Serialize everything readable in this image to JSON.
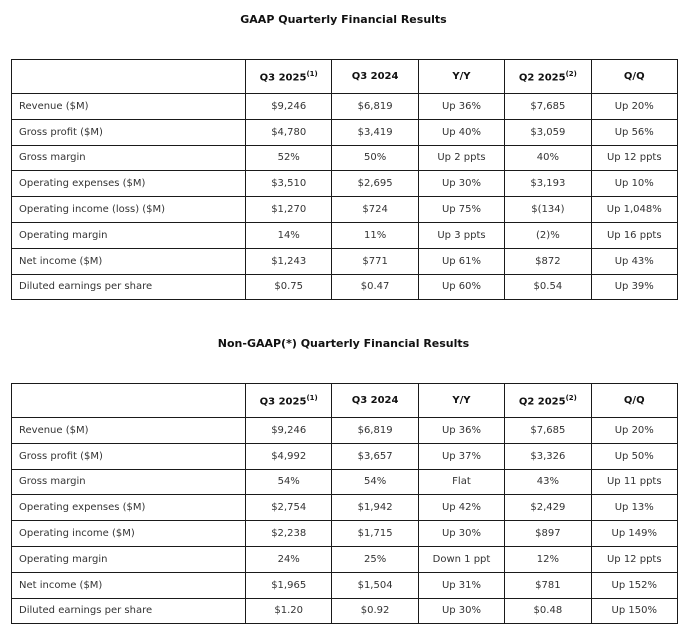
{
  "tables": [
    {
      "title": "GAAP Quarterly Financial Results",
      "headers": [
        {
          "text": "",
          "sup": ""
        },
        {
          "text": "Q3 2025",
          "sup": "(1)"
        },
        {
          "text": "Q3 2024",
          "sup": ""
        },
        {
          "text": "Y/Y",
          "sup": ""
        },
        {
          "text": "Q2 2025",
          "sup": "(2)"
        },
        {
          "text": "Q/Q",
          "sup": ""
        }
      ],
      "rows": [
        [
          "Revenue ($M)",
          "$9,246",
          "$6,819",
          "Up 36%",
          "$7,685",
          "Up 20%"
        ],
        [
          "Gross profit ($M)",
          "$4,780",
          "$3,419",
          "Up 40%",
          "$3,059",
          "Up 56%"
        ],
        [
          "Gross margin",
          "52%",
          "50%",
          "Up 2 ppts",
          "40%",
          "Up 12 ppts"
        ],
        [
          "Operating expenses ($M)",
          "$3,510",
          "$2,695",
          "Up 30%",
          "$3,193",
          "Up 10%"
        ],
        [
          "Operating income (loss) ($M)",
          "$1,270",
          "$724",
          "Up 75%",
          "$(134)",
          "Up 1,048%"
        ],
        [
          "Operating margin",
          "14%",
          "11%",
          "Up 3 ppts",
          "(2)%",
          "Up 16 ppts"
        ],
        [
          "Net income ($M)",
          "$1,243",
          "$771",
          "Up 61%",
          "$872",
          "Up 43%"
        ],
        [
          "Diluted earnings per share",
          "$0.75",
          "$0.47",
          "Up 60%",
          "$0.54",
          "Up 39%"
        ]
      ]
    },
    {
      "title": "Non-GAAP(*) Quarterly Financial Results",
      "headers": [
        {
          "text": "",
          "sup": ""
        },
        {
          "text": "Q3 2025",
          "sup": "(1)"
        },
        {
          "text": "Q3 2024",
          "sup": ""
        },
        {
          "text": "Y/Y",
          "sup": ""
        },
        {
          "text": "Q2 2025",
          "sup": "(2)"
        },
        {
          "text": "Q/Q",
          "sup": ""
        }
      ],
      "rows": [
        [
          "Revenue ($M)",
          "$9,246",
          "$6,819",
          "Up 36%",
          "$7,685",
          "Up 20%"
        ],
        [
          "Gross profit ($M)",
          "$4,992",
          "$3,657",
          "Up 37%",
          "$3,326",
          "Up 50%"
        ],
        [
          "Gross margin",
          "54%",
          "54%",
          "Flat",
          "43%",
          "Up 11 ppts"
        ],
        [
          "Operating expenses ($M)",
          "$2,754",
          "$1,942",
          "Up 42%",
          "$2,429",
          "Up 13%"
        ],
        [
          "Operating income ($M)",
          "$2,238",
          "$1,715",
          "Up 30%",
          "$897",
          "Up 149%"
        ],
        [
          "Operating margin",
          "24%",
          "25%",
          "Down 1 ppt",
          "12%",
          "Up 12 ppts"
        ],
        [
          "Net income ($M)",
          "$1,965",
          "$1,504",
          "Up 31%",
          "$781",
          "Up 152%"
        ],
        [
          "Diluted earnings per share",
          "$1.20",
          "$0.92",
          "Up 30%",
          "$0.48",
          "Up 150%"
        ]
      ]
    }
  ]
}
